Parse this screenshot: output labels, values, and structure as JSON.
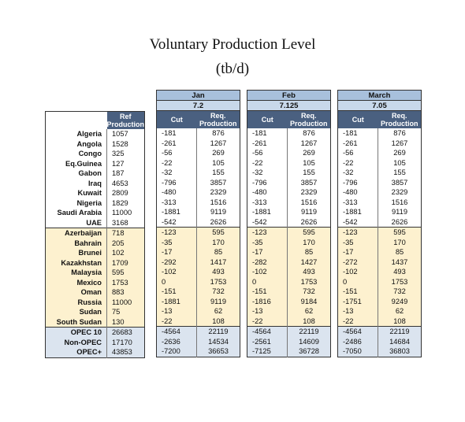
{
  "title": "Voluntary Production Level",
  "subtitle": "(tb/d)",
  "ref_header": "Ref\nProduction",
  "cut_header": "Cut",
  "req_header": "Req.\nProduction",
  "months": [
    {
      "name": "Jan",
      "value": "7.2"
    },
    {
      "name": "Feb",
      "value": "7.125"
    },
    {
      "name": "March",
      "value": "7.05"
    }
  ],
  "rows": [
    {
      "country": "Algeria",
      "ref": "1057",
      "cells": [
        [
          "-181",
          "876"
        ],
        [
          "-181",
          "876"
        ],
        [
          "-181",
          "876"
        ]
      ]
    },
    {
      "country": "Angola",
      "ref": "1528",
      "cells": [
        [
          "-261",
          "1267"
        ],
        [
          "-261",
          "1267"
        ],
        [
          "-261",
          "1267"
        ]
      ]
    },
    {
      "country": "Congo",
      "ref": "325",
      "cells": [
        [
          "-56",
          "269"
        ],
        [
          "-56",
          "269"
        ],
        [
          "-56",
          "269"
        ]
      ]
    },
    {
      "country": "Eq.Guinea",
      "ref": "127",
      "cells": [
        [
          "-22",
          "105"
        ],
        [
          "-22",
          "105"
        ],
        [
          "-22",
          "105"
        ]
      ]
    },
    {
      "country": "Gabon",
      "ref": "187",
      "cells": [
        [
          "-32",
          "155"
        ],
        [
          "-32",
          "155"
        ],
        [
          "-32",
          "155"
        ]
      ]
    },
    {
      "country": "Iraq",
      "ref": "4653",
      "cells": [
        [
          "-796",
          "3857"
        ],
        [
          "-796",
          "3857"
        ],
        [
          "-796",
          "3857"
        ]
      ]
    },
    {
      "country": "Kuwait",
      "ref": "2809",
      "cells": [
        [
          "-480",
          "2329"
        ],
        [
          "-480",
          "2329"
        ],
        [
          "-480",
          "2329"
        ]
      ]
    },
    {
      "country": "Nigeria",
      "ref": "1829",
      "cells": [
        [
          "-313",
          "1516"
        ],
        [
          "-313",
          "1516"
        ],
        [
          "-313",
          "1516"
        ]
      ]
    },
    {
      "country": "Saudi Arabia",
      "ref": "11000",
      "cells": [
        [
          "-1881",
          "9119"
        ],
        [
          "-1881",
          "9119"
        ],
        [
          "-1881",
          "9119"
        ]
      ]
    },
    {
      "country": "UAE",
      "ref": "3168",
      "cells": [
        [
          "-542",
          "2626"
        ],
        [
          "-542",
          "2626"
        ],
        [
          "-542",
          "2626"
        ]
      ]
    },
    {
      "country": "Azerbaijan",
      "ref": "718",
      "cells": [
        [
          "-123",
          "595"
        ],
        [
          "-123",
          "595"
        ],
        [
          "-123",
          "595"
        ]
      ]
    },
    {
      "country": "Bahrain",
      "ref": "205",
      "cells": [
        [
          "-35",
          "170"
        ],
        [
          "-35",
          "170"
        ],
        [
          "-35",
          "170"
        ]
      ]
    },
    {
      "country": "Brunei",
      "ref": "102",
      "cells": [
        [
          "-17",
          "85"
        ],
        [
          "-17",
          "85"
        ],
        [
          "-17",
          "85"
        ]
      ]
    },
    {
      "country": "Kazakhstan",
      "ref": "1709",
      "cells": [
        [
          "-292",
          "1417"
        ],
        [
          "-282",
          "1427"
        ],
        [
          "-272",
          "1437"
        ]
      ]
    },
    {
      "country": "Malaysia",
      "ref": "595",
      "cells": [
        [
          "-102",
          "493"
        ],
        [
          "-102",
          "493"
        ],
        [
          "-102",
          "493"
        ]
      ]
    },
    {
      "country": "Mexico",
      "ref": "1753",
      "cells": [
        [
          "0",
          "1753"
        ],
        [
          "0",
          "1753"
        ],
        [
          "0",
          "1753"
        ]
      ]
    },
    {
      "country": "Oman",
      "ref": "883",
      "cells": [
        [
          "-151",
          "732"
        ],
        [
          "-151",
          "732"
        ],
        [
          "-151",
          "732"
        ]
      ]
    },
    {
      "country": "Russia",
      "ref": "11000",
      "cells": [
        [
          "-1881",
          "9119"
        ],
        [
          "-1816",
          "9184"
        ],
        [
          "-1751",
          "9249"
        ]
      ]
    },
    {
      "country": "Sudan",
      "ref": "75",
      "cells": [
        [
          "-13",
          "62"
        ],
        [
          "-13",
          "62"
        ],
        [
          "-13",
          "62"
        ]
      ]
    },
    {
      "country": "South Sudan",
      "ref": "130",
      "cells": [
        [
          "-22",
          "108"
        ],
        [
          "-22",
          "108"
        ],
        [
          "-22",
          "108"
        ]
      ]
    },
    {
      "country": "OPEC 10",
      "ref": "26683",
      "cells": [
        [
          "-4564",
          "22119"
        ],
        [
          "-4564",
          "22119"
        ],
        [
          "-4564",
          "22119"
        ]
      ]
    },
    {
      "country": "Non-OPEC",
      "ref": "17170",
      "cells": [
        [
          "-2636",
          "14534"
        ],
        [
          "-2561",
          "14609"
        ],
        [
          "-2486",
          "14684"
        ]
      ]
    },
    {
      "country": "OPEC+",
      "ref": "43853",
      "cells": [
        [
          "-7200",
          "36653"
        ],
        [
          "-7125",
          "36728"
        ],
        [
          "-7050",
          "36803"
        ]
      ]
    }
  ]
}
